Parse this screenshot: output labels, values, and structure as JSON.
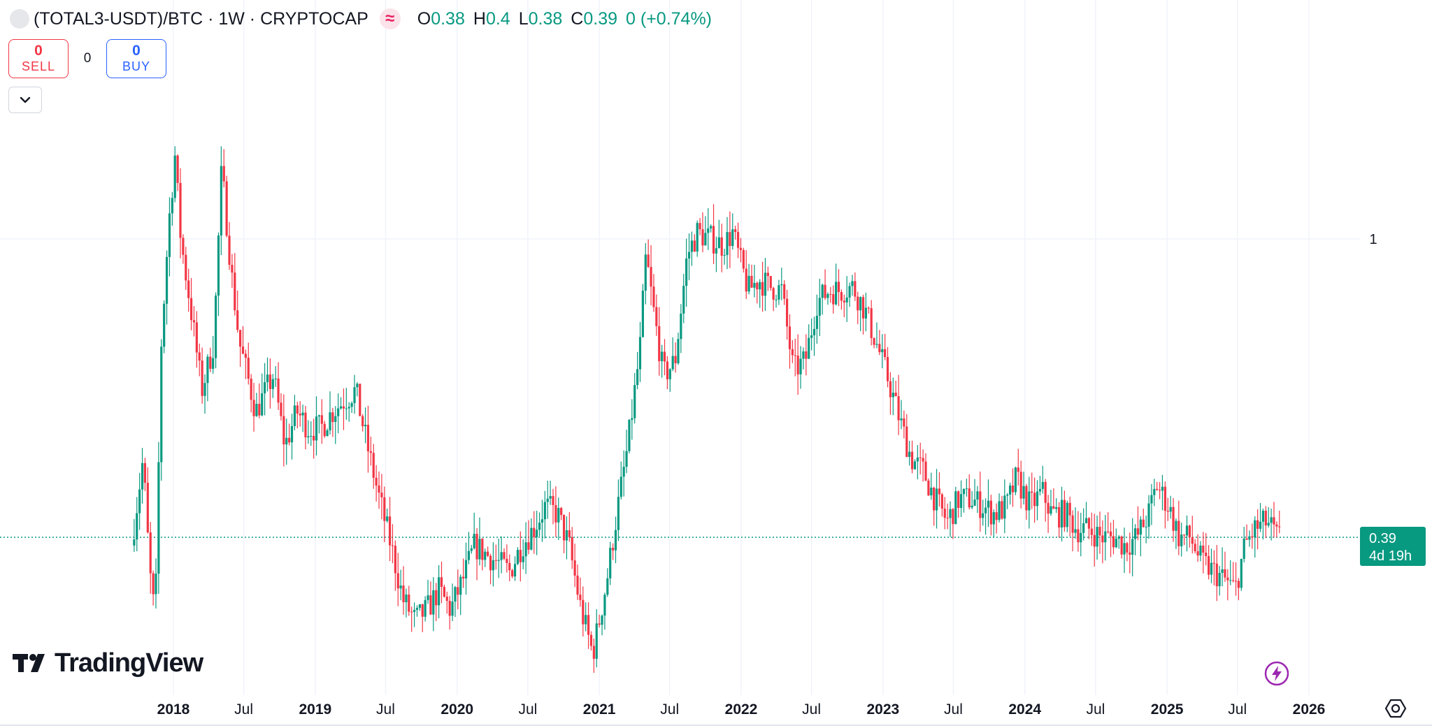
{
  "header": {
    "symbol": "(TOTAL3-USDT)/BTC · 1W · CRYPTOCAP",
    "indicator_icon": "approx-equals-icon",
    "ohlc": {
      "o_key": "O",
      "o_val": "0.38",
      "h_key": "H",
      "h_val": "0.4",
      "l_key": "L",
      "l_val": "0.38",
      "c_key": "C",
      "c_val": "0.39",
      "change": "0 (+0.74%)"
    }
  },
  "trade": {
    "sell_count": "0",
    "sell_label": "SELL",
    "spread": "0",
    "buy_count": "0",
    "buy_label": "BUY"
  },
  "price_label": {
    "price": "0.39",
    "countdown": "4d 19h"
  },
  "branding": {
    "logo_text": "TradingView"
  },
  "colors": {
    "up": "#089981",
    "down": "#f23645",
    "grid": "#f0f3fa",
    "accent": "#089981"
  },
  "chart_data": {
    "type": "line",
    "title": "(TOTAL3-USDT)/BTC · 1W · CRYPTOCAP",
    "style": "candlestick",
    "x_tick_labels": [
      "2018",
      "Jul",
      "2019",
      "Jul",
      "2020",
      "Jul",
      "2021",
      "Jul",
      "2022",
      "Jul",
      "2023",
      "Jul",
      "2024",
      "Jul",
      "2025",
      "Jul",
      "2026"
    ],
    "y_tick_labels": [
      "1"
    ],
    "y_scale": "log",
    "last_price": 0.39,
    "series": [
      {
        "name": "",
        "x": [
          "2017-09-15",
          "2017-10-15",
          "2017-11-01",
          "2017-11-15",
          "2017-12-01",
          "2017-12-20",
          "2018-01-05",
          "2018-01-20",
          "2018-02-15",
          "2018-03-15",
          "2018-04-15",
          "2018-05-05",
          "2018-06-01",
          "2018-06-20",
          "2018-08-01",
          "2018-09-15",
          "2018-10-15",
          "2018-11-15",
          "2018-12-15",
          "2019-01-15",
          "2019-02-15",
          "2019-03-15",
          "2019-04-15",
          "2019-05-15",
          "2019-06-15",
          "2019-07-15",
          "2019-08-15",
          "2019-09-15",
          "2019-10-15",
          "2019-11-15",
          "2019-12-15",
          "2020-01-15",
          "2020-02-15",
          "2020-03-15",
          "2020-04-15",
          "2020-05-15",
          "2020-06-15",
          "2020-07-15",
          "2020-08-15",
          "2020-09-15",
          "2020-10-15",
          "2020-11-15",
          "2020-12-15",
          "2021-01-01",
          "2021-01-20",
          "2021-02-15",
          "2021-03-15",
          "2021-04-15",
          "2021-05-01",
          "2021-05-20",
          "2021-06-15",
          "2021-07-15",
          "2021-08-15",
          "2021-09-10",
          "2021-10-15",
          "2021-11-15",
          "2021-12-10",
          "2022-01-01",
          "2022-01-20",
          "2022-02-15",
          "2022-03-15",
          "2022-04-15",
          "2022-05-15",
          "2022-06-15",
          "2022-07-15",
          "2022-08-15",
          "2022-09-15",
          "2022-10-15",
          "2022-11-15",
          "2022-12-15",
          "2023-01-15",
          "2023-02-15",
          "2023-03-15",
          "2023-04-15",
          "2023-05-15",
          "2023-06-15",
          "2023-07-15",
          "2023-08-15",
          "2023-09-15",
          "2023-10-15",
          "2023-11-15",
          "2023-12-10",
          "2024-01-15",
          "2024-02-15",
          "2024-03-10",
          "2024-04-15",
          "2024-05-15",
          "2024-06-15",
          "2024-07-15",
          "2024-08-15",
          "2024-09-15",
          "2024-10-15",
          "2024-11-15",
          "2024-12-05",
          "2025-01-05",
          "2025-02-01",
          "2025-03-01",
          "2025-04-01",
          "2025-05-01",
          "2025-06-01",
          "2025-06-25",
          "2025-07-20",
          "2025-08-15",
          "2025-09-15",
          "2025-10-10",
          "2025-10-20"
        ],
        "values": [
          0.38,
          0.5,
          0.35,
          0.3,
          0.72,
          1.05,
          1.3,
          1.0,
          0.8,
          0.62,
          0.72,
          1.25,
          0.88,
          0.72,
          0.58,
          0.65,
          0.52,
          0.58,
          0.55,
          0.55,
          0.58,
          0.6,
          0.62,
          0.52,
          0.44,
          0.38,
          0.32,
          0.3,
          0.31,
          0.33,
          0.31,
          0.34,
          0.38,
          0.37,
          0.36,
          0.35,
          0.38,
          0.4,
          0.43,
          0.42,
          0.38,
          0.31,
          0.27,
          0.3,
          0.34,
          0.42,
          0.52,
          0.7,
          0.95,
          0.8,
          0.65,
          0.68,
          0.95,
          1.02,
          1.0,
          0.98,
          1.02,
          0.92,
          0.85,
          0.88,
          0.86,
          0.85,
          0.66,
          0.68,
          0.82,
          0.85,
          0.85,
          0.86,
          0.8,
          0.72,
          0.64,
          0.56,
          0.5,
          0.48,
          0.44,
          0.41,
          0.44,
          0.44,
          0.43,
          0.42,
          0.43,
          0.47,
          0.43,
          0.45,
          0.42,
          0.42,
          0.4,
          0.4,
          0.39,
          0.39,
          0.38,
          0.39,
          0.42,
          0.46,
          0.43,
          0.39,
          0.39,
          0.36,
          0.35,
          0.34,
          0.33,
          0.38,
          0.4,
          0.41,
          0.39,
          0.39
        ]
      }
    ]
  }
}
